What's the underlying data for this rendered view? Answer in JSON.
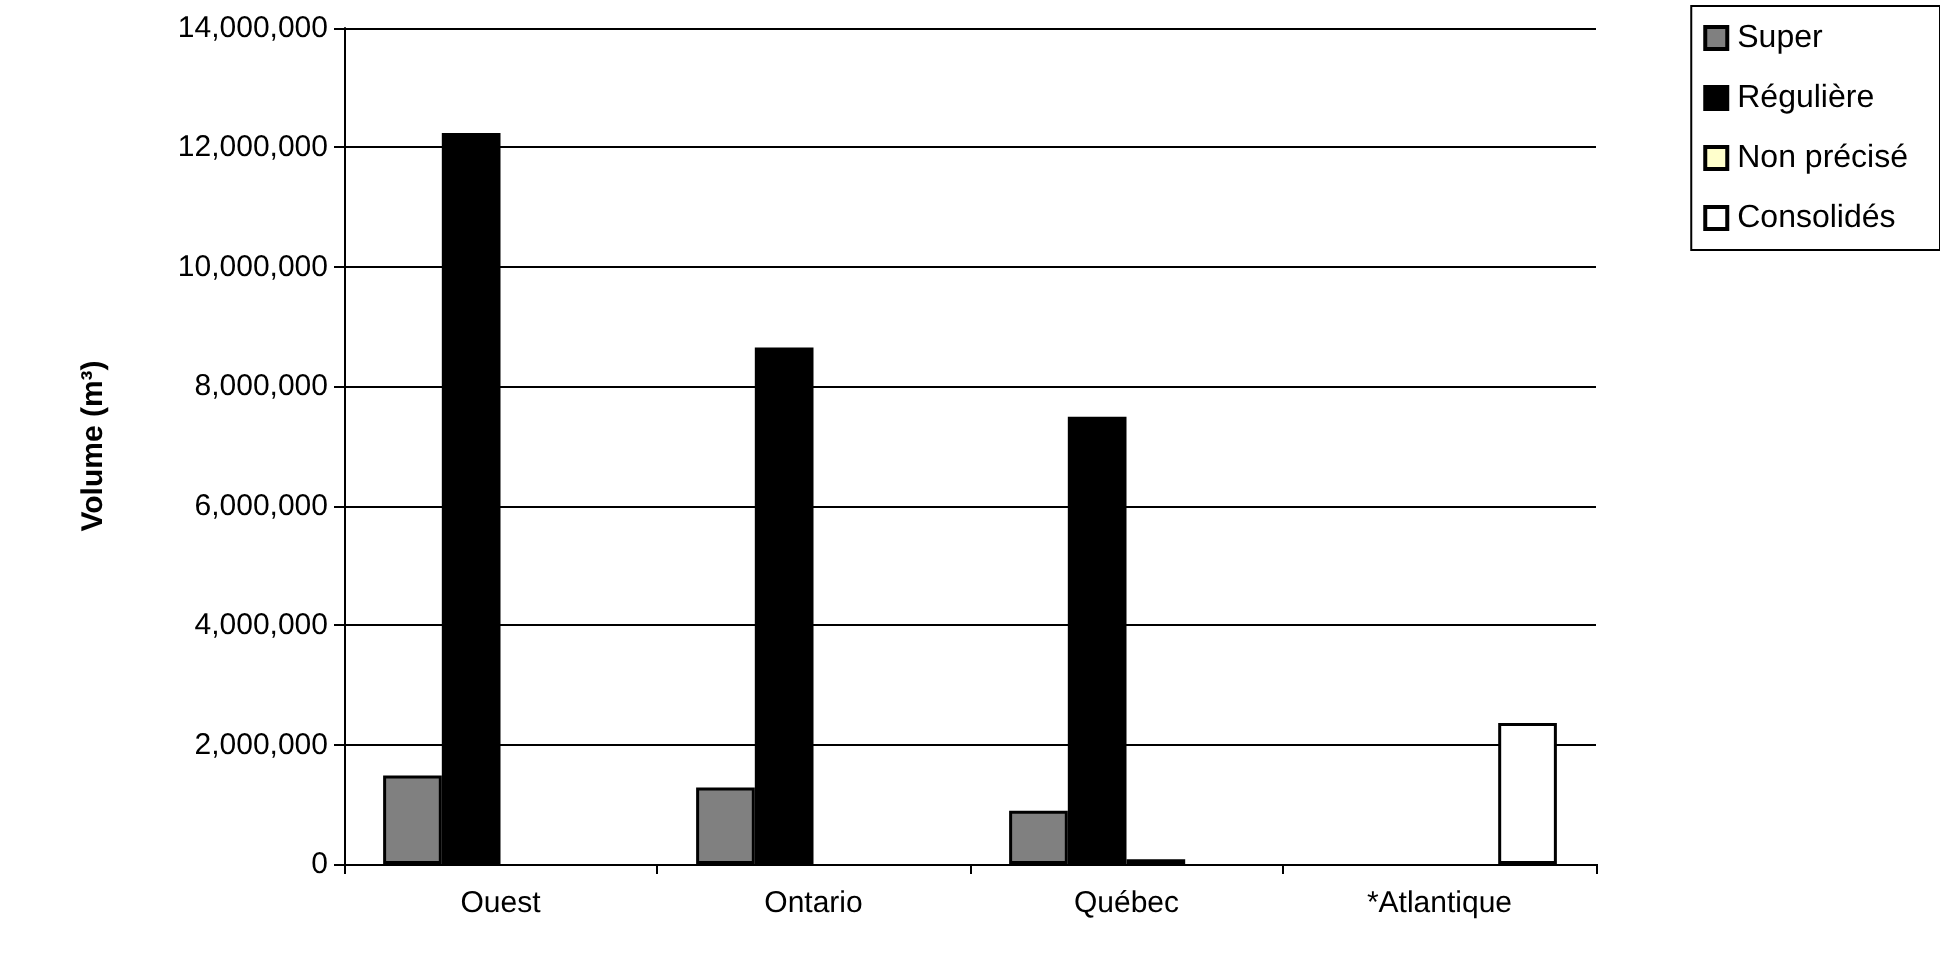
{
  "chart_data": {
    "type": "bar",
    "ylabel": "Volume (m³)",
    "categories": [
      "Ouest",
      "Ontario",
      "Québec",
      "*Atlantique"
    ],
    "series": [
      {
        "name": "Super",
        "color": "#808080",
        "values": [
          1480000,
          1280000,
          890000,
          null
        ]
      },
      {
        "name": "Régulière",
        "color": "#000000",
        "values": [
          12240000,
          8650000,
          7490000,
          null
        ]
      },
      {
        "name": "Non précisé",
        "color": "#ffffcc",
        "values": [
          null,
          null,
          80000,
          null
        ]
      },
      {
        "name": "Consolidés",
        "color": "#ffffff",
        "values": [
          null,
          null,
          null,
          2360000
        ]
      }
    ],
    "ylim": [
      0,
      14000000
    ],
    "yticks": [
      {
        "value": 0,
        "label": "0"
      },
      {
        "value": 2000000,
        "label": "2,000,000"
      },
      {
        "value": 4000000,
        "label": "4,000,000"
      },
      {
        "value": 6000000,
        "label": "6,000,000"
      },
      {
        "value": 8000000,
        "label": "8,000,000"
      },
      {
        "value": 10000000,
        "label": "10,000,000"
      },
      {
        "value": 12000000,
        "label": "12,000,000"
      },
      {
        "value": 14000000,
        "label": "14,000,000"
      }
    ],
    "grid": "y",
    "legend": "top right"
  }
}
